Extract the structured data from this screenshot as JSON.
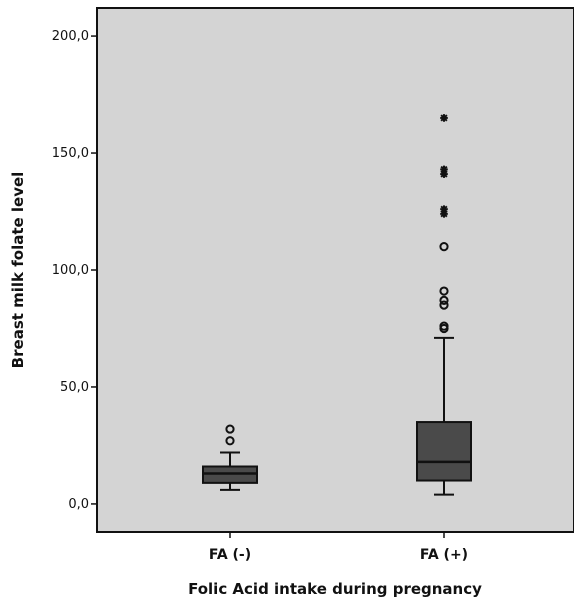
{
  "chart_data": {
    "type": "boxplot",
    "xlabel": "Folic Acid intake during pregnancy",
    "ylabel": "Breast milk folate level",
    "ylim": [
      -12,
      212
    ],
    "y_ticks": [
      {
        "value": 0,
        "label": "0,0"
      },
      {
        "value": 50,
        "label": "50,0"
      },
      {
        "value": 100,
        "label": "100,0"
      },
      {
        "value": 150,
        "label": "150,0"
      },
      {
        "value": 200,
        "label": "200,0"
      }
    ],
    "grid": false,
    "colors": {
      "plot_background": "#d4d4d4",
      "box_fill": "#4a4a4a",
      "line": "#111111"
    },
    "categories": [
      "FA (-)",
      "FA (+)"
    ],
    "boxes": [
      {
        "category": "FA (-)",
        "whisker_low": 6,
        "q1": 9,
        "median": 13,
        "q3": 16,
        "whisker_high": 22,
        "outliers": [
          {
            "value": 27,
            "marker": "circle"
          },
          {
            "value": 32,
            "marker": "circle"
          }
        ]
      },
      {
        "category": "FA (+)",
        "whisker_low": 4,
        "q1": 10,
        "median": 18,
        "q3": 35,
        "whisker_high": 71,
        "outliers": [
          {
            "value": 75,
            "marker": "circle"
          },
          {
            "value": 76,
            "marker": "circle"
          },
          {
            "value": 85,
            "marker": "circle"
          },
          {
            "value": 87,
            "marker": "circle"
          },
          {
            "value": 91,
            "marker": "circle"
          },
          {
            "value": 110,
            "marker": "circle"
          },
          {
            "value": 124,
            "marker": "star"
          },
          {
            "value": 126,
            "marker": "star"
          },
          {
            "value": 141,
            "marker": "star"
          },
          {
            "value": 143,
            "marker": "star"
          },
          {
            "value": 165,
            "marker": "star"
          }
        ]
      }
    ]
  }
}
